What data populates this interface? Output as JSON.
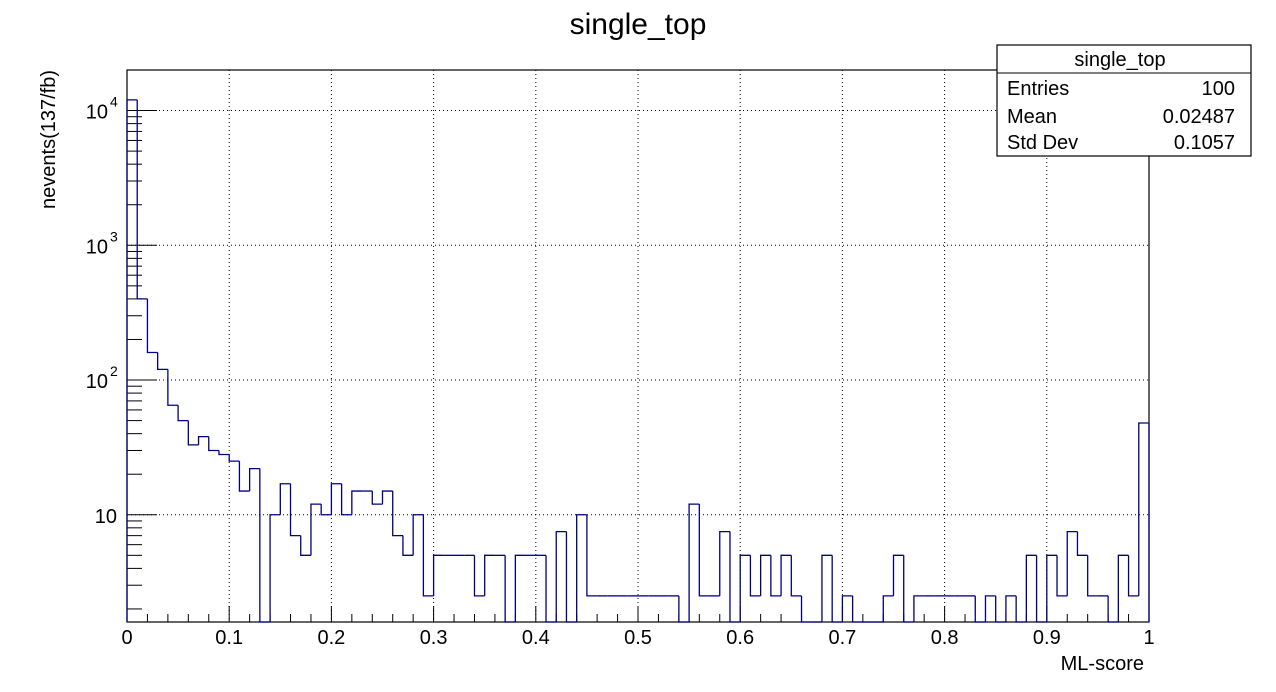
{
  "colors": {
    "line": "#000080",
    "frame": "#000000",
    "grid": "#000000",
    "background": "#ffffff"
  },
  "chart_data": {
    "type": "histogram",
    "title": "single_top",
    "xlabel": "ML-score",
    "ylabel": "nevents(137/fb)",
    "xlim": [
      0,
      1
    ],
    "ylim": [
      1.6,
      20000
    ],
    "yscale": "log",
    "grid": true,
    "x_ticks": [
      "0",
      "0.1",
      "0.2",
      "0.3",
      "0.4",
      "0.5",
      "0.6",
      "0.7",
      "0.8",
      "0.9",
      "1"
    ],
    "y_ticks": [
      {
        "value": 10,
        "mantissa": "10",
        "exponent": ""
      },
      {
        "value": 100,
        "mantissa": "10",
        "exponent": "2"
      },
      {
        "value": 1000,
        "mantissa": "10",
        "exponent": "3"
      },
      {
        "value": 10000,
        "mantissa": "10",
        "exponent": "4"
      }
    ],
    "stats_box": {
      "title": "single_top",
      "placement": "top-right",
      "rows": [
        {
          "label": "Entries",
          "value": "100"
        },
        {
          "label": "Mean",
          "value": "0.02487"
        },
        {
          "label": "Std Dev",
          "value": "0.1057"
        }
      ]
    },
    "bin_width": 0.01,
    "bin_edges_start": 0,
    "bin_contents": [
      12000,
      400,
      160,
      120,
      65,
      50,
      33,
      38,
      30,
      28,
      25,
      15,
      22,
      0,
      10,
      17,
      7,
      5,
      12,
      10,
      17,
      10,
      15,
      15,
      12,
      15,
      7,
      5,
      10,
      2.5,
      5,
      5,
      5,
      5,
      2.5,
      5,
      5,
      0,
      5,
      5,
      5,
      0,
      7.5,
      0,
      10,
      2.5,
      2.5,
      2.5,
      2.5,
      2.5,
      2.5,
      2.5,
      2.5,
      2.5,
      0,
      12,
      2.5,
      2.5,
      7.5,
      0,
      5,
      2.5,
      5,
      2.5,
      5,
      2.5,
      0,
      0,
      5,
      0,
      2.5,
      0,
      0,
      0,
      2.5,
      5,
      0,
      2.5,
      2.5,
      2.5,
      2.5,
      2.5,
      2.5,
      0,
      2.5,
      0,
      2.5,
      0,
      5,
      0,
      5,
      2.5,
      7.5,
      5,
      2.5,
      2.5,
      0,
      5,
      2.5,
      48
    ]
  }
}
